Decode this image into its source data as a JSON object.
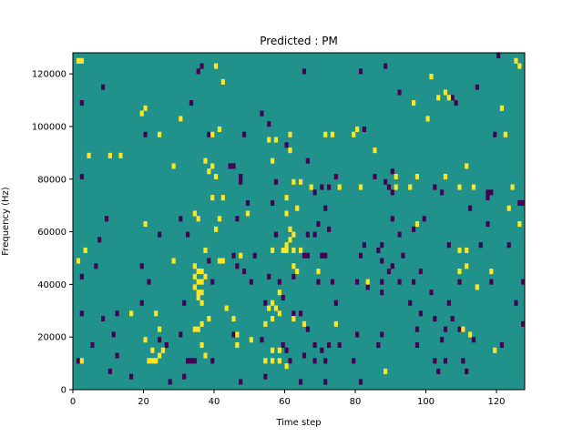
{
  "chart_data": {
    "type": "heatmap",
    "title": "Predicted : PM",
    "xlabel": "Time step",
    "ylabel": "Frequency (Hz)",
    "xlim": [
      0,
      128
    ],
    "ylim": [
      0,
      128000
    ],
    "grid": false,
    "x_ticks": [
      0,
      20,
      40,
      60,
      80,
      100,
      120
    ],
    "y_ticks": [
      0,
      20000,
      40000,
      60000,
      80000,
      100000,
      120000
    ],
    "y_tick_labels": [
      "0",
      "20000",
      "40000",
      "60000",
      "80000",
      "100000",
      "120000"
    ],
    "value_levels": [
      -1,
      0,
      1
    ],
    "colormap": "viridis",
    "colors": {
      "low": "#440154",
      "mid": "#21918c",
      "high": "#fde725"
    },
    "background_value": 0,
    "cell_width": 1,
    "cell_height": 2000,
    "cells_high": [
      [
        1,
        124000
      ],
      [
        2,
        124000
      ],
      [
        40,
        122000
      ],
      [
        125,
        124000
      ],
      [
        126,
        122000
      ],
      [
        101,
        118000
      ],
      [
        42,
        116000
      ],
      [
        103,
        110000
      ],
      [
        105,
        112000
      ],
      [
        106,
        110000
      ],
      [
        20,
        106000
      ],
      [
        96,
        108000
      ],
      [
        121,
        106000
      ],
      [
        19,
        104000
      ],
      [
        100,
        102000
      ],
      [
        30,
        102000
      ],
      [
        80,
        98000
      ],
      [
        41,
        98000
      ],
      [
        24,
        96000
      ],
      [
        39,
        96000
      ],
      [
        61,
        96000
      ],
      [
        71,
        96000
      ],
      [
        73,
        96000
      ],
      [
        79,
        96000
      ],
      [
        122,
        96000
      ],
      [
        55,
        94000
      ],
      [
        57,
        94000
      ],
      [
        4,
        88000
      ],
      [
        10,
        88000
      ],
      [
        13,
        88000
      ],
      [
        61,
        90000
      ],
      [
        85,
        90000
      ],
      [
        37,
        86000
      ],
      [
        56,
        86000
      ],
      [
        28,
        84000
      ],
      [
        111,
        84000
      ],
      [
        39,
        84000
      ],
      [
        38,
        82000
      ],
      [
        40,
        80000
      ],
      [
        91,
        80000
      ],
      [
        97,
        80000
      ],
      [
        105,
        80000
      ],
      [
        62,
        78000
      ],
      [
        64,
        78000
      ],
      [
        67,
        76000
      ],
      [
        75,
        76000
      ],
      [
        81,
        76000
      ],
      [
        91,
        76000
      ],
      [
        95,
        76000
      ],
      [
        109,
        76000
      ],
      [
        113,
        76000
      ],
      [
        124,
        76000
      ],
      [
        39,
        72000
      ],
      [
        42,
        72000
      ],
      [
        60,
        72000
      ],
      [
        63,
        68000
      ],
      [
        123,
        68000
      ],
      [
        34,
        66000
      ],
      [
        35,
        64000
      ],
      [
        49,
        66000
      ],
      [
        60,
        66000
      ],
      [
        41,
        64000
      ],
      [
        20,
        62000
      ],
      [
        97,
        62000
      ],
      [
        126,
        62000
      ],
      [
        40,
        60000
      ],
      [
        61,
        60000
      ],
      [
        62,
        58000
      ],
      [
        61,
        56000
      ],
      [
        60,
        54000
      ],
      [
        3,
        52000
      ],
      [
        37,
        52000
      ],
      [
        47,
        50000
      ],
      [
        56,
        52000
      ],
      [
        59,
        52000
      ],
      [
        60,
        52000
      ],
      [
        62,
        52000
      ],
      [
        64,
        52000
      ],
      [
        109,
        52000
      ],
      [
        111,
        52000
      ],
      [
        1,
        48000
      ],
      [
        28,
        48000
      ],
      [
        41,
        48000
      ],
      [
        42,
        48000
      ],
      [
        34,
        46000
      ],
      [
        35,
        44000
      ],
      [
        36,
        44000
      ],
      [
        62,
        46000
      ],
      [
        63,
        44000
      ],
      [
        69,
        44000
      ],
      [
        34,
        42000
      ],
      [
        35,
        40000
      ],
      [
        36,
        40000
      ],
      [
        37,
        42000
      ],
      [
        109,
        44000
      ],
      [
        111,
        46000
      ],
      [
        118,
        44000
      ],
      [
        34,
        38000
      ],
      [
        35,
        36000
      ],
      [
        36,
        36000
      ],
      [
        58,
        36000
      ],
      [
        83,
        40000
      ],
      [
        114,
        38000
      ],
      [
        35,
        34000
      ],
      [
        36,
        32000
      ],
      [
        56,
        32000
      ],
      [
        57,
        30000
      ],
      [
        16,
        28000
      ],
      [
        43,
        30000
      ],
      [
        55,
        30000
      ],
      [
        58,
        28000
      ],
      [
        56,
        26000
      ],
      [
        54,
        24000
      ],
      [
        23,
        28000
      ],
      [
        38,
        26000
      ],
      [
        36,
        24000
      ],
      [
        45,
        26000
      ],
      [
        62,
        26000
      ],
      [
        65,
        24000
      ],
      [
        74,
        24000
      ],
      [
        110,
        22000
      ],
      [
        112,
        20000
      ],
      [
        24,
        22000
      ],
      [
        34,
        22000
      ],
      [
        35,
        22000
      ],
      [
        20,
        18000
      ],
      [
        46,
        20000
      ],
      [
        50,
        18000
      ],
      [
        36,
        16000
      ],
      [
        22,
        14000
      ],
      [
        25,
        14000
      ],
      [
        46,
        16000
      ],
      [
        119,
        14000
      ],
      [
        24,
        12000
      ],
      [
        37,
        12000
      ],
      [
        56,
        14000
      ],
      [
        58,
        14000
      ],
      [
        54,
        10000
      ],
      [
        56,
        10000
      ],
      [
        58,
        10000
      ],
      [
        2,
        10000
      ],
      [
        21,
        10000
      ],
      [
        22,
        10000
      ],
      [
        23,
        10000
      ],
      [
        60,
        8000
      ],
      [
        88,
        6000
      ]
    ],
    "cells_low": [
      [
        36,
        122000
      ],
      [
        120,
        126000
      ],
      [
        88,
        122000
      ],
      [
        35,
        120000
      ],
      [
        65,
        120000
      ],
      [
        81,
        120000
      ],
      [
        8,
        114000
      ],
      [
        92,
        112000
      ],
      [
        114,
        114000
      ],
      [
        2,
        108000
      ],
      [
        33,
        108000
      ],
      [
        107,
        110000
      ],
      [
        108,
        108000
      ],
      [
        53,
        104000
      ],
      [
        55,
        100000
      ],
      [
        82,
        98000
      ],
      [
        20,
        96000
      ],
      [
        38,
        96000
      ],
      [
        48,
        96000
      ],
      [
        119,
        96000
      ],
      [
        60,
        92000
      ],
      [
        44,
        84000
      ],
      [
        45,
        84000
      ],
      [
        66,
        86000
      ],
      [
        2,
        80000
      ],
      [
        47,
        80000
      ],
      [
        90,
        82000
      ],
      [
        47,
        78000
      ],
      [
        57,
        78000
      ],
      [
        74,
        80000
      ],
      [
        85,
        80000
      ],
      [
        88,
        78000
      ],
      [
        89,
        76000
      ],
      [
        90,
        74000
      ],
      [
        68,
        74000
      ],
      [
        70,
        76000
      ],
      [
        72,
        76000
      ],
      [
        102,
        76000
      ],
      [
        104,
        74000
      ],
      [
        117,
        74000
      ],
      [
        117,
        72000
      ],
      [
        118,
        74000
      ],
      [
        126,
        70000
      ],
      [
        127,
        70000
      ],
      [
        49,
        70000
      ],
      [
        56,
        70000
      ],
      [
        60,
        66000
      ],
      [
        71,
        68000
      ],
      [
        112,
        68000
      ],
      [
        9,
        64000
      ],
      [
        30,
        64000
      ],
      [
        46,
        64000
      ],
      [
        90,
        64000
      ],
      [
        99,
        64000
      ],
      [
        117,
        62000
      ],
      [
        69,
        62000
      ],
      [
        72,
        60000
      ],
      [
        92,
        58000
      ],
      [
        96,
        60000
      ],
      [
        7,
        56000
      ],
      [
        24,
        58000
      ],
      [
        32,
        58000
      ],
      [
        57,
        58000
      ],
      [
        66,
        58000
      ],
      [
        68,
        58000
      ],
      [
        82,
        54000
      ],
      [
        87,
        54000
      ],
      [
        106,
        54000
      ],
      [
        115,
        54000
      ],
      [
        123,
        54000
      ],
      [
        86,
        52000
      ],
      [
        93,
        50000
      ],
      [
        45,
        50000
      ],
      [
        51,
        50000
      ],
      [
        65,
        50000
      ],
      [
        66,
        50000
      ],
      [
        70,
        50000
      ],
      [
        71,
        50000
      ],
      [
        81,
        50000
      ],
      [
        87,
        48000
      ],
      [
        89,
        44000
      ],
      [
        90,
        46000
      ],
      [
        98,
        44000
      ],
      [
        6,
        46000
      ],
      [
        19,
        46000
      ],
      [
        38,
        48000
      ],
      [
        46,
        46000
      ],
      [
        48,
        44000
      ],
      [
        87,
        40000
      ],
      [
        92,
        40000
      ],
      [
        109,
        40000
      ],
      [
        118,
        40000
      ],
      [
        127,
        40000
      ],
      [
        2,
        42000
      ],
      [
        21,
        40000
      ],
      [
        39,
        40000
      ],
      [
        50,
        40000
      ],
      [
        55,
        42000
      ],
      [
        58,
        40000
      ],
      [
        62,
        42000
      ],
      [
        69,
        40000
      ],
      [
        73,
        40000
      ],
      [
        80,
        40000
      ],
      [
        96,
        40000
      ],
      [
        83,
        38000
      ],
      [
        87,
        36000
      ],
      [
        101,
        36000
      ],
      [
        19,
        32000
      ],
      [
        31,
        32000
      ],
      [
        54,
        32000
      ],
      [
        59,
        34000
      ],
      [
        74,
        32000
      ],
      [
        95,
        32000
      ],
      [
        106,
        32000
      ],
      [
        125,
        32000
      ],
      [
        2,
        28000
      ],
      [
        8,
        26000
      ],
      [
        12,
        28000
      ],
      [
        62,
        28000
      ],
      [
        64,
        28000
      ],
      [
        98,
        28000
      ],
      [
        102,
        26000
      ],
      [
        107,
        26000
      ],
      [
        127,
        24000
      ],
      [
        66,
        22000
      ],
      [
        80,
        20000
      ],
      [
        87,
        20000
      ],
      [
        97,
        22000
      ],
      [
        105,
        22000
      ],
      [
        109,
        22000
      ],
      [
        45,
        20000
      ],
      [
        59,
        16000
      ],
      [
        60,
        14000
      ],
      [
        68,
        16000
      ],
      [
        70,
        14000
      ],
      [
        72,
        16000
      ],
      [
        5,
        16000
      ],
      [
        11,
        20000
      ],
      [
        30,
        20000
      ],
      [
        24,
        18000
      ],
      [
        26,
        16000
      ],
      [
        53,
        18000
      ],
      [
        75,
        16000
      ],
      [
        86,
        16000
      ],
      [
        97,
        16000
      ],
      [
        104,
        18000
      ],
      [
        113,
        18000
      ],
      [
        121,
        16000
      ],
      [
        1,
        10000
      ],
      [
        32,
        10000
      ],
      [
        33,
        10000
      ],
      [
        34,
        10000
      ],
      [
        39,
        10000
      ],
      [
        61,
        10000
      ],
      [
        68,
        10000
      ],
      [
        71,
        10000
      ],
      [
        79,
        10000
      ],
      [
        102,
        10000
      ],
      [
        105,
        10000
      ],
      [
        110,
        10000
      ],
      [
        10,
        6000
      ],
      [
        16,
        4000
      ],
      [
        27,
        2000
      ],
      [
        31,
        4000
      ],
      [
        47,
        2000
      ],
      [
        54,
        4000
      ],
      [
        64,
        2000
      ],
      [
        71,
        2000
      ],
      [
        81,
        2000
      ],
      [
        103,
        6000
      ],
      [
        111,
        6000
      ],
      [
        12,
        12000
      ],
      [
        65,
        12000
      ]
    ]
  }
}
